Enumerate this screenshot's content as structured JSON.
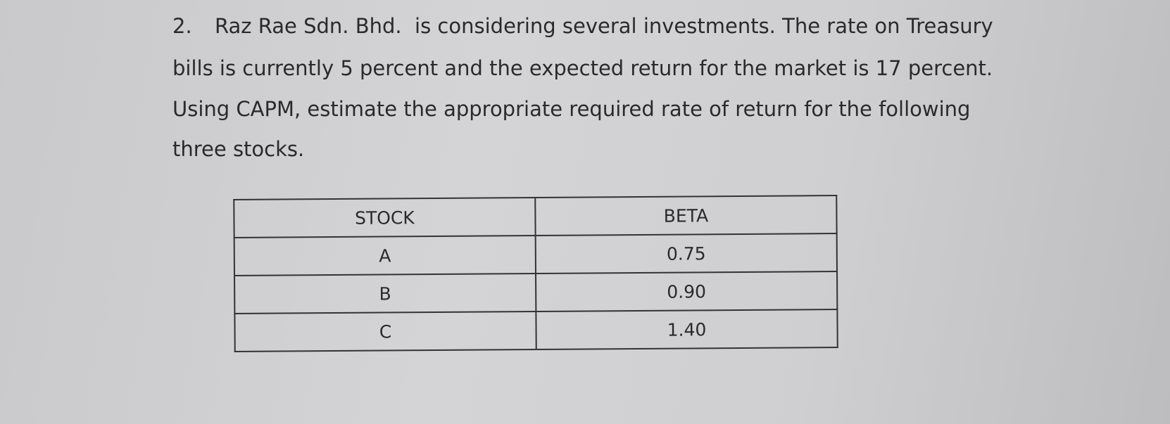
{
  "question": {
    "number": "2.",
    "lines": [
      "Raz Rae Sdn. Bhd.  is considering several investments. The rate on Treasury",
      "bills is currently 5 percent and the expected return for the market is 17 percent.",
      "Using CAPM, estimate the appropriate required rate of return for the following",
      "three stocks."
    ]
  },
  "table": {
    "header": [
      "STOCK",
      "BETA"
    ],
    "rows": [
      [
        "A",
        "0.75"
      ],
      [
        "B",
        "0.90"
      ],
      [
        "C",
        "1.40"
      ]
    ]
  }
}
